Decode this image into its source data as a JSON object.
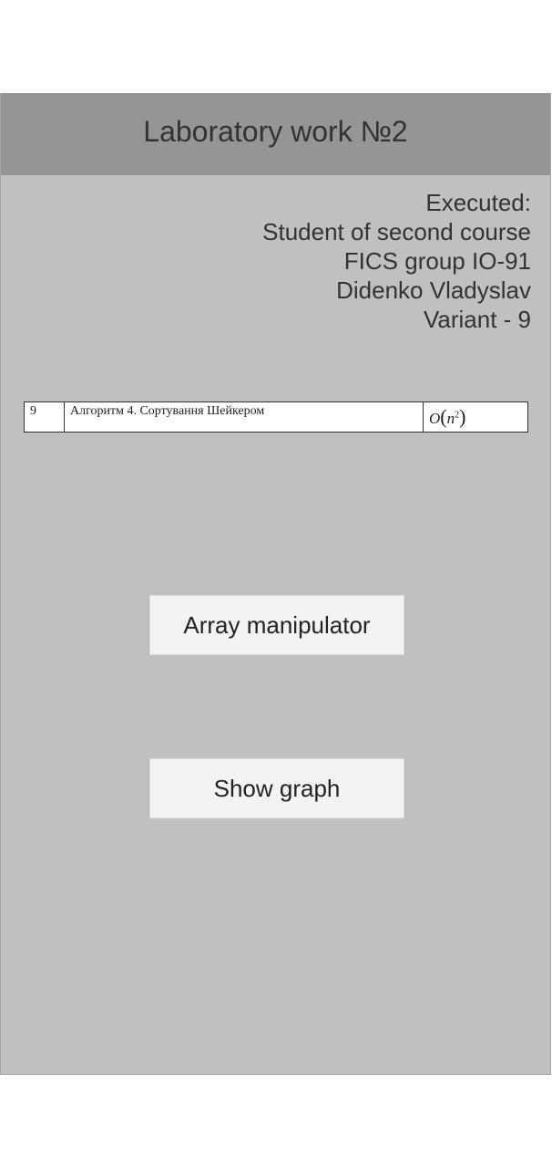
{
  "header": {
    "title": "Laboratory work №2"
  },
  "info": {
    "lines": [
      "Executed:",
      "Student of second course",
      "FICS group IO-91",
      "Didenko Vladyslav",
      "Variant - 9"
    ]
  },
  "variant_table": {
    "number": "9",
    "algorithm": "Алгоритм 4. Сортування Шейкером",
    "complexity": {
      "symbol": "O",
      "open": "(",
      "base": "n",
      "exponent": "2",
      "close": ")"
    }
  },
  "buttons": {
    "array_manipulator": "Array manipulator",
    "show_graph": "Show graph"
  },
  "colors": {
    "background": "#c0c0c0",
    "header": "#959595",
    "button": "#f3f3f3",
    "text": "#333333"
  }
}
